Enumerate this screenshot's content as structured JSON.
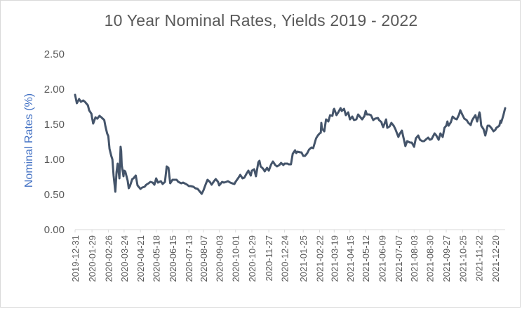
{
  "chart_data": {
    "type": "line",
    "title": "10 Year Nominal Rates, Yields 2019 - 2022",
    "xlabel": "",
    "ylabel": "Nominal Rates (%)",
    "ylim": [
      0,
      2.5
    ],
    "y_ticks": [
      "0.00",
      "0.50",
      "1.00",
      "1.50",
      "2.00",
      "2.50"
    ],
    "x_tick_labels": [
      "2019-12-31",
      "2020-01-29",
      "2020-02-26",
      "2020-03-24",
      "2020-04-21",
      "2020-05-18",
      "2020-06-15",
      "2020-07-13",
      "2020-08-07",
      "2020-09-03",
      "2020-10-01",
      "2020-10-29",
      "2020-11-27",
      "2020-12-24",
      "2021-01-25",
      "2021-02-22",
      "2021-03-19",
      "2021-04-15",
      "2021-05-12",
      "2021-06-09",
      "2021-07-07",
      "2021-08-03",
      "2021-08-30",
      "2021-09-27",
      "2021-10-25",
      "2021-11-22",
      "2021-12-20"
    ],
    "grid": false,
    "legend": "none",
    "series": [
      {
        "color": "#44546a",
        "points": [
          [
            "2019-12-31",
            1.92
          ],
          [
            "2020-01-03",
            1.8
          ],
          [
            "2020-01-07",
            1.86
          ],
          [
            "2020-01-10",
            1.82
          ],
          [
            "2020-01-14",
            1.84
          ],
          [
            "2020-01-17",
            1.82
          ],
          [
            "2020-01-22",
            1.77
          ],
          [
            "2020-01-24",
            1.7
          ],
          [
            "2020-01-28",
            1.65
          ],
          [
            "2020-01-29",
            1.6
          ],
          [
            "2020-01-31",
            1.51
          ],
          [
            "2020-02-04",
            1.6
          ],
          [
            "2020-02-07",
            1.58
          ],
          [
            "2020-02-11",
            1.62
          ],
          [
            "2020-02-14",
            1.6
          ],
          [
            "2020-02-19",
            1.56
          ],
          [
            "2020-02-21",
            1.47
          ],
          [
            "2020-02-24",
            1.37
          ],
          [
            "2020-02-26",
            1.33
          ],
          [
            "2020-02-28",
            1.15
          ],
          [
            "2020-03-02",
            1.05
          ],
          [
            "2020-03-04",
            1.0
          ],
          [
            "2020-03-06",
            0.77
          ],
          [
            "2020-03-09",
            0.54
          ],
          [
            "2020-03-11",
            0.82
          ],
          [
            "2020-03-13",
            0.94
          ],
          [
            "2020-03-16",
            0.73
          ],
          [
            "2020-03-18",
            1.18
          ],
          [
            "2020-03-19",
            1.12
          ],
          [
            "2020-03-20",
            0.92
          ],
          [
            "2020-03-23",
            0.76
          ],
          [
            "2020-03-24",
            0.84
          ],
          [
            "2020-03-26",
            0.83
          ],
          [
            "2020-03-30",
            0.7
          ],
          [
            "2020-04-01",
            0.59
          ],
          [
            "2020-04-03",
            0.62
          ],
          [
            "2020-04-07",
            0.72
          ],
          [
            "2020-04-09",
            0.73
          ],
          [
            "2020-04-13",
            0.77
          ],
          [
            "2020-04-16",
            0.63
          ],
          [
            "2020-04-21",
            0.58
          ],
          [
            "2020-04-24",
            0.6
          ],
          [
            "2020-04-28",
            0.61
          ],
          [
            "2020-05-01",
            0.64
          ],
          [
            "2020-05-05",
            0.66
          ],
          [
            "2020-05-08",
            0.68
          ],
          [
            "2020-05-12",
            0.67
          ],
          [
            "2020-05-15",
            0.64
          ],
          [
            "2020-05-18",
            0.73
          ],
          [
            "2020-05-21",
            0.67
          ],
          [
            "2020-05-26",
            0.69
          ],
          [
            "2020-05-29",
            0.65
          ],
          [
            "2020-06-02",
            0.68
          ],
          [
            "2020-06-05",
            0.9
          ],
          [
            "2020-06-08",
            0.88
          ],
          [
            "2020-06-11",
            0.66
          ],
          [
            "2020-06-15",
            0.71
          ],
          [
            "2020-06-18",
            0.71
          ],
          [
            "2020-06-22",
            0.71
          ],
          [
            "2020-06-25",
            0.68
          ],
          [
            "2020-06-30",
            0.66
          ],
          [
            "2020-07-03",
            0.67
          ],
          [
            "2020-07-08",
            0.65
          ],
          [
            "2020-07-10",
            0.64
          ],
          [
            "2020-07-13",
            0.62
          ],
          [
            "2020-07-16",
            0.62
          ],
          [
            "2020-07-21",
            0.61
          ],
          [
            "2020-07-24",
            0.59
          ],
          [
            "2020-07-28",
            0.58
          ],
          [
            "2020-07-31",
            0.55
          ],
          [
            "2020-08-04",
            0.51
          ],
          [
            "2020-08-07",
            0.56
          ],
          [
            "2020-08-11",
            0.65
          ],
          [
            "2020-08-14",
            0.71
          ],
          [
            "2020-08-18",
            0.68
          ],
          [
            "2020-08-21",
            0.64
          ],
          [
            "2020-08-25",
            0.69
          ],
          [
            "2020-08-28",
            0.72
          ],
          [
            "2020-09-01",
            0.68
          ],
          [
            "2020-09-03",
            0.63
          ],
          [
            "2020-09-08",
            0.68
          ],
          [
            "2020-09-11",
            0.67
          ],
          [
            "2020-09-15",
            0.68
          ],
          [
            "2020-09-18",
            0.69
          ],
          [
            "2020-09-22",
            0.67
          ],
          [
            "2020-09-25",
            0.66
          ],
          [
            "2020-09-29",
            0.65
          ],
          [
            "2020-10-01",
            0.68
          ],
          [
            "2020-10-06",
            0.74
          ],
          [
            "2020-10-09",
            0.78
          ],
          [
            "2020-10-13",
            0.73
          ],
          [
            "2020-10-16",
            0.74
          ],
          [
            "2020-10-20",
            0.8
          ],
          [
            "2020-10-23",
            0.84
          ],
          [
            "2020-10-27",
            0.77
          ],
          [
            "2020-10-29",
            0.84
          ],
          [
            "2020-11-02",
            0.86
          ],
          [
            "2020-11-05",
            0.76
          ],
          [
            "2020-11-09",
            0.96
          ],
          [
            "2020-11-11",
            0.98
          ],
          [
            "2020-11-13",
            0.9
          ],
          [
            "2020-11-17",
            0.87
          ],
          [
            "2020-11-20",
            0.83
          ],
          [
            "2020-11-24",
            0.88
          ],
          [
            "2020-11-27",
            0.84
          ],
          [
            "2020-12-01",
            0.93
          ],
          [
            "2020-12-04",
            0.97
          ],
          [
            "2020-12-08",
            0.92
          ],
          [
            "2020-12-11",
            0.9
          ],
          [
            "2020-12-15",
            0.92
          ],
          [
            "2020-12-18",
            0.95
          ],
          [
            "2020-12-22",
            0.92
          ],
          [
            "2020-12-24",
            0.94
          ],
          [
            "2020-12-29",
            0.94
          ],
          [
            "2020-12-31",
            0.93
          ],
          [
            "2021-01-04",
            0.93
          ],
          [
            "2021-01-07",
            1.08
          ],
          [
            "2021-01-11",
            1.13
          ],
          [
            "2021-01-13",
            1.09
          ],
          [
            "2021-01-15",
            1.11
          ],
          [
            "2021-01-20",
            1.1
          ],
          [
            "2021-01-22",
            1.1
          ],
          [
            "2021-01-25",
            1.05
          ],
          [
            "2021-01-28",
            1.05
          ],
          [
            "2021-02-01",
            1.09
          ],
          [
            "2021-02-04",
            1.14
          ],
          [
            "2021-02-08",
            1.17
          ],
          [
            "2021-02-11",
            1.16
          ],
          [
            "2021-02-16",
            1.3
          ],
          [
            "2021-02-19",
            1.34
          ],
          [
            "2021-02-22",
            1.37
          ],
          [
            "2021-02-24",
            1.38
          ],
          [
            "2021-02-25",
            1.52
          ],
          [
            "2021-02-26",
            1.44
          ],
          [
            "2021-03-02",
            1.4
          ],
          [
            "2021-03-05",
            1.57
          ],
          [
            "2021-03-09",
            1.54
          ],
          [
            "2021-03-12",
            1.63
          ],
          [
            "2021-03-16",
            1.62
          ],
          [
            "2021-03-18",
            1.71
          ],
          [
            "2021-03-19",
            1.72
          ],
          [
            "2021-03-23",
            1.63
          ],
          [
            "2021-03-26",
            1.67
          ],
          [
            "2021-03-30",
            1.73
          ],
          [
            "2021-04-01",
            1.69
          ],
          [
            "2021-04-05",
            1.72
          ],
          [
            "2021-04-08",
            1.63
          ],
          [
            "2021-04-12",
            1.67
          ],
          [
            "2021-04-15",
            1.57
          ],
          [
            "2021-04-19",
            1.61
          ],
          [
            "2021-04-22",
            1.56
          ],
          [
            "2021-04-26",
            1.57
          ],
          [
            "2021-04-29",
            1.64
          ],
          [
            "2021-05-03",
            1.6
          ],
          [
            "2021-05-06",
            1.57
          ],
          [
            "2021-05-10",
            1.62
          ],
          [
            "2021-05-12",
            1.69
          ],
          [
            "2021-05-14",
            1.64
          ],
          [
            "2021-05-18",
            1.64
          ],
          [
            "2021-05-21",
            1.63
          ],
          [
            "2021-05-25",
            1.56
          ],
          [
            "2021-05-28",
            1.58
          ],
          [
            "2021-06-02",
            1.59
          ],
          [
            "2021-06-04",
            1.56
          ],
          [
            "2021-06-08",
            1.53
          ],
          [
            "2021-06-09",
            1.5
          ],
          [
            "2021-06-11",
            1.46
          ],
          [
            "2021-06-16",
            1.57
          ],
          [
            "2021-06-18",
            1.45
          ],
          [
            "2021-06-22",
            1.47
          ],
          [
            "2021-06-25",
            1.52
          ],
          [
            "2021-06-29",
            1.48
          ],
          [
            "2021-07-02",
            1.43
          ],
          [
            "2021-07-07",
            1.32
          ],
          [
            "2021-07-09",
            1.36
          ],
          [
            "2021-07-13",
            1.41
          ],
          [
            "2021-07-16",
            1.3
          ],
          [
            "2021-07-19",
            1.19
          ],
          [
            "2021-07-22",
            1.26
          ],
          [
            "2021-07-27",
            1.24
          ],
          [
            "2021-07-30",
            1.24
          ],
          [
            "2021-08-03",
            1.18
          ],
          [
            "2021-08-06",
            1.3
          ],
          [
            "2021-08-10",
            1.34
          ],
          [
            "2021-08-13",
            1.28
          ],
          [
            "2021-08-17",
            1.26
          ],
          [
            "2021-08-20",
            1.26
          ],
          [
            "2021-08-24",
            1.29
          ],
          [
            "2021-08-27",
            1.31
          ],
          [
            "2021-08-30",
            1.28
          ],
          [
            "2021-09-02",
            1.29
          ],
          [
            "2021-09-07",
            1.37
          ],
          [
            "2021-09-10",
            1.34
          ],
          [
            "2021-09-14",
            1.28
          ],
          [
            "2021-09-17",
            1.37
          ],
          [
            "2021-09-21",
            1.32
          ],
          [
            "2021-09-24",
            1.45
          ],
          [
            "2021-09-27",
            1.48
          ],
          [
            "2021-09-29",
            1.54
          ],
          [
            "2021-10-01",
            1.48
          ],
          [
            "2021-10-05",
            1.53
          ],
          [
            "2021-10-08",
            1.61
          ],
          [
            "2021-10-12",
            1.58
          ],
          [
            "2021-10-15",
            1.57
          ],
          [
            "2021-10-19",
            1.64
          ],
          [
            "2021-10-21",
            1.7
          ],
          [
            "2021-10-25",
            1.63
          ],
          [
            "2021-10-28",
            1.58
          ],
          [
            "2021-11-01",
            1.56
          ],
          [
            "2021-11-04",
            1.52
          ],
          [
            "2021-11-08",
            1.49
          ],
          [
            "2021-11-10",
            1.55
          ],
          [
            "2021-11-12",
            1.58
          ],
          [
            "2021-11-16",
            1.63
          ],
          [
            "2021-11-19",
            1.54
          ],
          [
            "2021-11-23",
            1.67
          ],
          [
            "2021-11-24",
            1.64
          ],
          [
            "2021-11-26",
            1.48
          ],
          [
            "2021-11-30",
            1.43
          ],
          [
            "2021-12-03",
            1.34
          ],
          [
            "2021-12-07",
            1.48
          ],
          [
            "2021-12-10",
            1.48
          ],
          [
            "2021-12-14",
            1.44
          ],
          [
            "2021-12-17",
            1.4
          ],
          [
            "2021-12-20",
            1.42
          ],
          [
            "2021-12-22",
            1.45
          ],
          [
            "2021-12-27",
            1.48
          ],
          [
            "2021-12-29",
            1.55
          ],
          [
            "2021-12-30",
            1.52
          ],
          [
            "2022-01-03",
            1.63
          ],
          [
            "2022-01-05",
            1.7
          ],
          [
            "2022-01-06",
            1.73
          ]
        ]
      }
    ]
  }
}
